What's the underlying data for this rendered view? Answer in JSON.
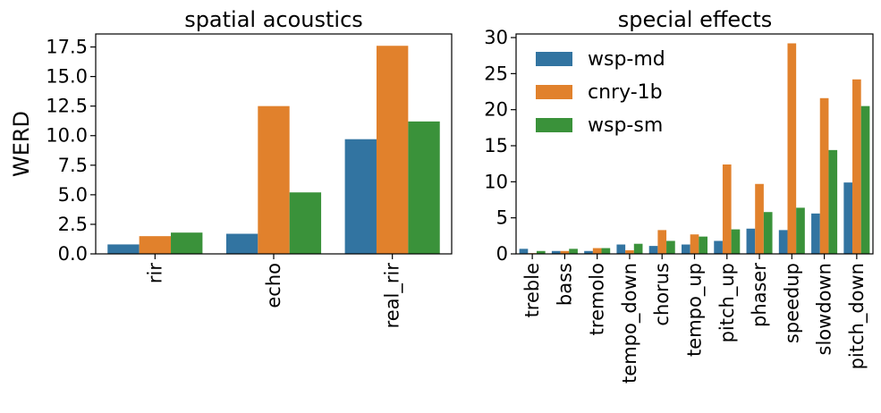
{
  "chart_data": [
    {
      "type": "bar",
      "title": "spatial acoustics",
      "xlabel": "",
      "ylabel": "WERD",
      "ylim": [
        0,
        18.6
      ],
      "yticks": [
        "0.0",
        "2.5",
        "5.0",
        "7.5",
        "10.0",
        "12.5",
        "15.0",
        "17.5"
      ],
      "categories": [
        "rir",
        "echo",
        "real_rir"
      ],
      "series": [
        {
          "name": "wsp-md",
          "values": [
            0.8,
            1.7,
            9.7
          ]
        },
        {
          "name": "cnry-1b",
          "values": [
            1.5,
            12.5,
            17.6
          ]
        },
        {
          "name": "wsp-sm",
          "values": [
            1.8,
            5.2,
            11.2
          ]
        }
      ],
      "grid": false
    },
    {
      "type": "bar",
      "title": "special effects",
      "xlabel": "",
      "ylabel": "",
      "ylim": [
        0,
        30.5
      ],
      "yticks": [
        "0",
        "5",
        "10",
        "15",
        "20",
        "25",
        "30"
      ],
      "categories": [
        "treble",
        "bass",
        "tremolo",
        "tempo_down",
        "chorus",
        "tempo_up",
        "pitch_up",
        "phaser",
        "speedup",
        "slowdown",
        "pitch_down"
      ],
      "series": [
        {
          "name": "wsp-md",
          "values": [
            0.7,
            0.4,
            0.4,
            1.3,
            1.1,
            1.3,
            1.8,
            3.5,
            3.3,
            5.6,
            9.9
          ]
        },
        {
          "name": "cnry-1b",
          "values": [
            0.1,
            0.4,
            0.8,
            0.5,
            3.3,
            2.7,
            12.4,
            9.7,
            29.2,
            21.6,
            24.2
          ]
        },
        {
          "name": "wsp-sm",
          "values": [
            0.4,
            0.7,
            0.8,
            1.4,
            1.8,
            2.4,
            3.4,
            5.8,
            6.4,
            14.4,
            20.5
          ]
        }
      ],
      "legend": "top-left",
      "grid": false
    }
  ],
  "colors": {
    "wsp-md": "#3274a1",
    "cnry-1b": "#e1812c",
    "wsp-sm": "#3a923a"
  }
}
